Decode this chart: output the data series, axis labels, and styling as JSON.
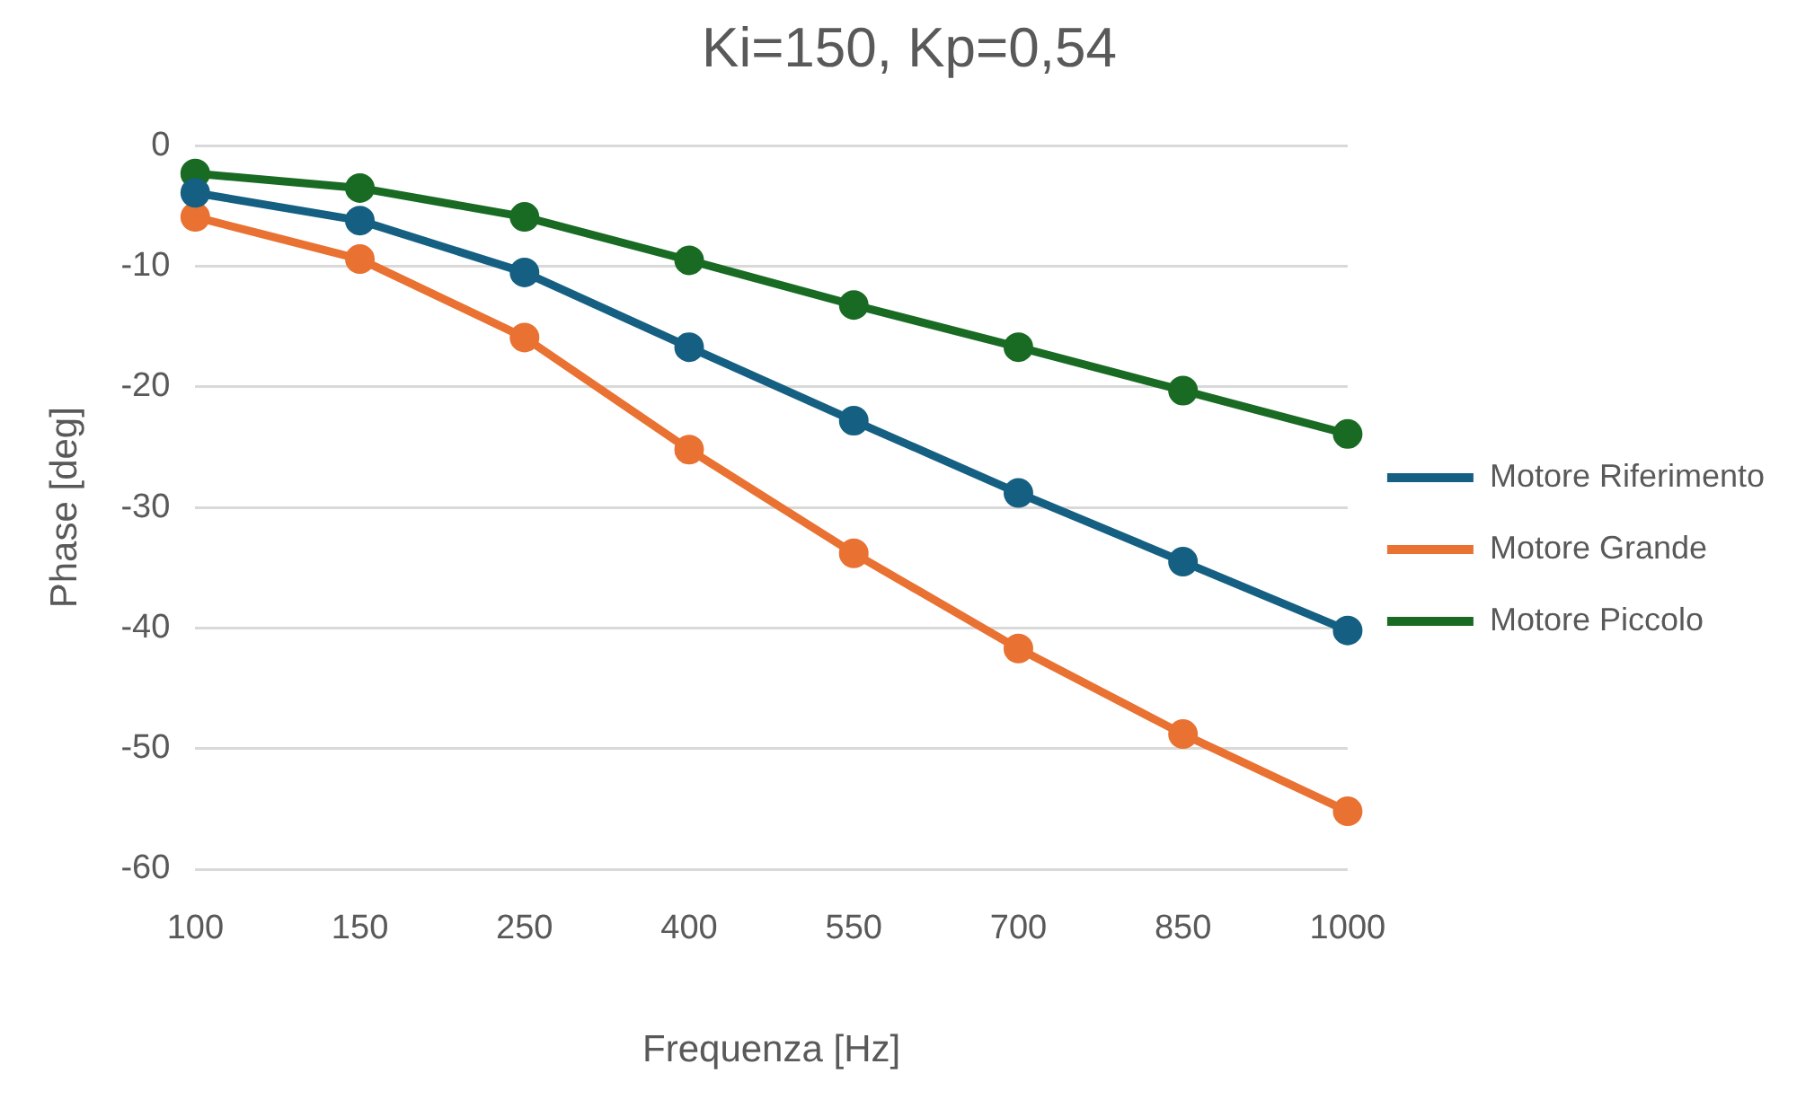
{
  "chart_data": {
    "type": "line",
    "title": "Ki=150, Kp=0,54",
    "xlabel": "Frequenza [Hz]",
    "ylabel": "Phase [deg]",
    "categories": [
      "100",
      "150",
      "250",
      "400",
      "550",
      "700",
      "850",
      "1000"
    ],
    "series": [
      {
        "name": "Motore Riferimento",
        "color": "#156082",
        "values": [
          -3.9,
          -6.2,
          -10.5,
          -16.7,
          -22.8,
          -28.8,
          -34.5,
          -40.2
        ]
      },
      {
        "name": "Motore Grande",
        "color": "#e97132",
        "values": [
          -5.9,
          -9.4,
          -15.9,
          -25.2,
          -33.8,
          -41.7,
          -48.8,
          -55.2
        ]
      },
      {
        "name": "Motore Piccolo",
        "color": "#196b24",
        "values": [
          -2.3,
          -3.5,
          -5.9,
          -9.5,
          -13.2,
          -16.7,
          -20.3,
          -23.9
        ]
      }
    ],
    "ylim": [
      -60,
      0
    ],
    "yticks": [
      -60,
      -50,
      -40,
      -30,
      -20,
      -10,
      0
    ],
    "grid": "y",
    "legend": "right",
    "marker": "circle",
    "line_style": "solid"
  }
}
